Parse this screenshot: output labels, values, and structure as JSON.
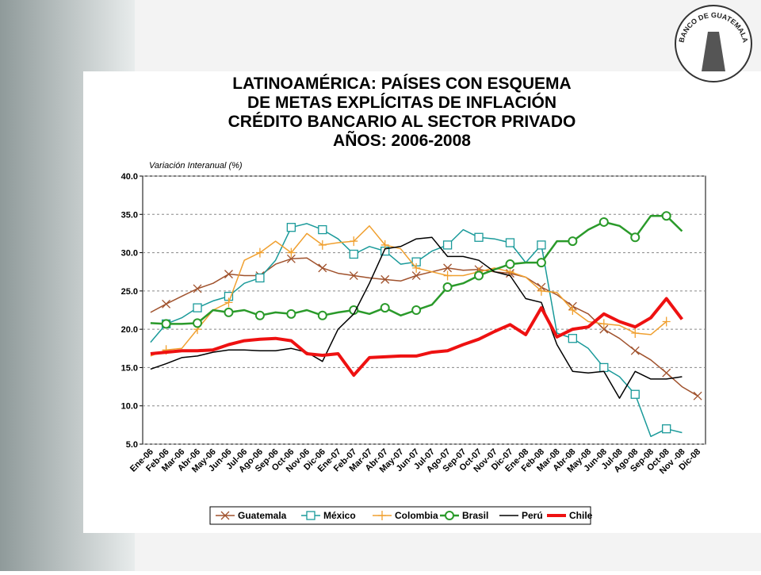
{
  "logo_text": "BANCO DE GUATEMALA",
  "chart_data": {
    "type": "line",
    "title": [
      "LATINOAMÉRICA:  PAÍSES CON ESQUEMA",
      "DE METAS EXPLÍCITAS DE INFLACIÓN",
      "CRÉDITO BANCARIO AL SECTOR PRIVADO",
      "AÑOS: 2006-2008"
    ],
    "y_label": "Variación Interanual (%)",
    "categories": [
      "Ene-06",
      "Feb-06",
      "Mar-06",
      "Abr-06",
      "May-06",
      "Jun-06",
      "Jul-06",
      "Ago-06",
      "Sep-06",
      "Oct-06",
      "Nov-06",
      "Dic-06",
      "Ene-07",
      "Feb-07",
      "Mar-07",
      "Abr-07",
      "May-07",
      "Jun-07",
      "Jul-07",
      "Ago-07",
      "Sep-07",
      "Oct-07",
      "Nov-07",
      "Dic-07",
      "Ene-08",
      "Feb-08",
      "Mar-08",
      "Abr-08",
      "May-08",
      "Jun-08",
      "Jul-08",
      "Ago-08",
      "Sep-08",
      "Oct-08",
      "Nov -08",
      "Dic-08"
    ],
    "ylim": [
      5,
      40
    ],
    "yticks": [
      {
        "value": 5,
        "label": "5.0"
      },
      {
        "value": 10,
        "label": "10.0"
      },
      {
        "value": 15,
        "label": "15.0"
      },
      {
        "value": 20,
        "label": "20.0"
      },
      {
        "value": 25,
        "label": "25.0"
      },
      {
        "value": 30,
        "label": "30.0"
      },
      {
        "value": 35,
        "label": "35.0"
      },
      {
        "value": 40,
        "label": "40.0"
      }
    ],
    "grid": true,
    "legend": "bottom",
    "series": [
      {
        "name": "Guatemala",
        "color": "#a0522d",
        "marker": "x",
        "width": 1.5,
        "values": [
          22.2,
          23.3,
          24.3,
          25.3,
          26,
          27.2,
          27,
          27,
          28.5,
          29.2,
          29.3,
          28,
          27.3,
          27,
          26.7,
          26.5,
          26.3,
          27,
          27.5,
          28,
          27.7,
          27.8,
          27.5,
          27.3,
          26.8,
          25.5,
          24.5,
          23,
          22,
          20,
          18.8,
          17.2,
          16,
          14.3,
          12.5,
          11.3
        ]
      },
      {
        "name": "México",
        "color": "#1a9a9a",
        "marker": "square",
        "width": 1.5,
        "values": [
          18.3,
          20.7,
          21.5,
          22.8,
          23.7,
          24.3,
          26,
          26.7,
          29,
          33.3,
          33.8,
          33,
          31.8,
          29.8,
          30.8,
          30.2,
          28.5,
          28.8,
          30.2,
          31,
          33,
          32,
          31.8,
          31.3,
          28.7,
          31,
          19.5,
          18.8,
          17.5,
          15,
          13.8,
          11.5,
          6,
          7,
          6.5,
          null
        ]
      },
      {
        "name": "Colombia",
        "color": "#f0a030",
        "marker": "plus",
        "width": 1.5,
        "values": [
          16.5,
          17.3,
          17.5,
          20,
          22.5,
          23.5,
          29,
          30,
          31.5,
          30,
          32.5,
          31,
          31.3,
          31.5,
          33.5,
          31,
          30.5,
          28,
          27.5,
          27,
          27,
          27.5,
          28,
          27.5,
          26.8,
          25,
          24.8,
          22.5,
          21,
          20.7,
          20.5,
          19.5,
          19.3,
          21,
          null,
          null
        ]
      },
      {
        "name": "Brasil",
        "color": "#2a9a2a",
        "marker": "circle",
        "width": 2.5,
        "values": [
          20.8,
          20.7,
          20.7,
          20.8,
          22.5,
          22.2,
          22.5,
          21.8,
          22.2,
          22,
          22.5,
          21.8,
          22.2,
          22.5,
          22,
          22.8,
          21.8,
          22.5,
          23.2,
          25.5,
          26,
          27,
          27.8,
          28.5,
          28.7,
          28.7,
          31.5,
          31.5,
          33,
          34,
          33.5,
          32,
          34.8,
          34.8,
          32.8,
          null
        ]
      },
      {
        "name": "Perú",
        "color": "#000000",
        "marker": "none",
        "width": 1.5,
        "values": [
          14.8,
          15.5,
          16.3,
          16.5,
          17,
          17.3,
          17.3,
          17.2,
          17.2,
          17.5,
          17,
          15.8,
          20,
          22,
          26,
          30.5,
          30.8,
          31.8,
          32,
          29.5,
          29.5,
          29,
          27.5,
          27,
          24,
          23.5,
          18,
          14.5,
          14.3,
          14.5,
          11,
          14.5,
          13.5,
          13.5,
          13.8,
          null
        ]
      },
      {
        "name": "Chile",
        "color": "#ee1111",
        "marker": "none",
        "width": 4,
        "values": [
          16.8,
          17,
          17.2,
          17.2,
          17.3,
          18,
          18.5,
          18.7,
          18.8,
          18.5,
          16.8,
          16.6,
          16.8,
          14,
          16.3,
          16.4,
          16.5,
          16.5,
          17,
          17.2,
          18,
          18.7,
          19.7,
          20.6,
          19.3,
          22.8,
          19,
          20,
          20.3,
          22,
          21,
          20.3,
          21.5,
          24,
          21.3,
          null
        ]
      }
    ]
  }
}
